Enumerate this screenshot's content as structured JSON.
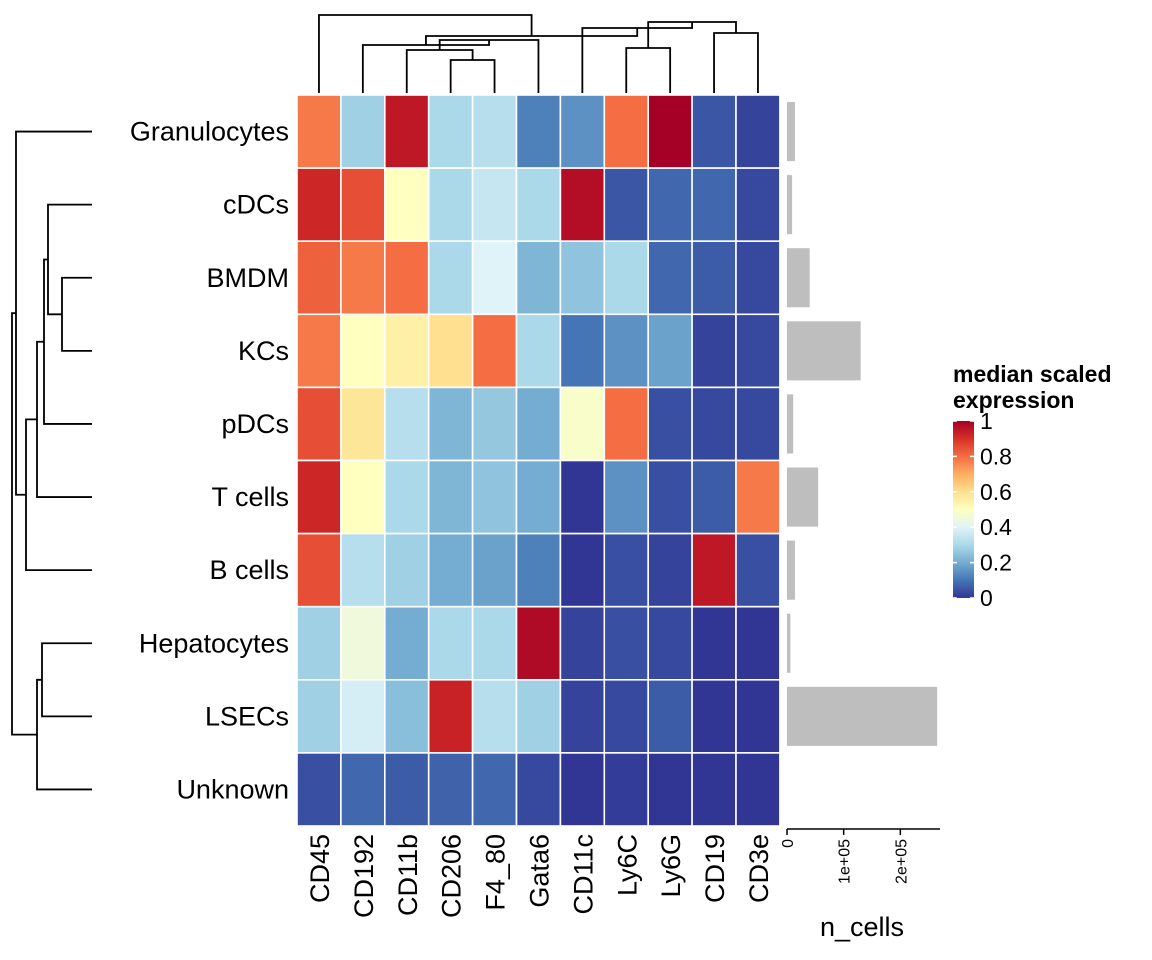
{
  "chart_data": {
    "type": "heatmap",
    "rows": [
      "Granulocytes",
      "cDCs",
      "BMDM",
      "KCs",
      "pDCs",
      "T cells",
      "B cells",
      "Hepatocytes",
      "LSECs",
      "Unknown"
    ],
    "columns": [
      "CD45",
      "CD192",
      "CD11b",
      "CD206",
      "F4_80",
      "Gata6",
      "CD11c",
      "Ly6C",
      "Ly6G",
      "CD19",
      "CD3e"
    ],
    "values": [
      [
        0.78,
        0.28,
        0.95,
        0.3,
        0.32,
        0.12,
        0.15,
        0.8,
        1.0,
        0.05,
        0.02
      ],
      [
        0.92,
        0.85,
        0.5,
        0.3,
        0.35,
        0.3,
        0.97,
        0.05,
        0.08,
        0.08,
        0.03
      ],
      [
        0.82,
        0.78,
        0.8,
        0.3,
        0.4,
        0.22,
        0.25,
        0.3,
        0.08,
        0.06,
        0.03
      ],
      [
        0.78,
        0.5,
        0.55,
        0.6,
        0.8,
        0.3,
        0.1,
        0.15,
        0.18,
        0.02,
        0.03
      ],
      [
        0.85,
        0.58,
        0.32,
        0.22,
        0.26,
        0.2,
        0.48,
        0.8,
        0.04,
        0.03,
        0.03
      ],
      [
        0.92,
        0.5,
        0.3,
        0.22,
        0.25,
        0.2,
        0.0,
        0.15,
        0.04,
        0.06,
        0.78
      ],
      [
        0.85,
        0.32,
        0.28,
        0.2,
        0.18,
        0.12,
        0.0,
        0.04,
        0.02,
        0.95,
        0.04
      ],
      [
        0.28,
        0.45,
        0.2,
        0.3,
        0.3,
        0.98,
        0.02,
        0.04,
        0.03,
        0.0,
        0.0
      ],
      [
        0.28,
        0.38,
        0.24,
        0.93,
        0.32,
        0.28,
        0.02,
        0.03,
        0.06,
        0.0,
        0.0
      ],
      [
        0.04,
        0.08,
        0.06,
        0.07,
        0.08,
        0.03,
        0.0,
        0.01,
        0.0,
        0.0,
        0.0
      ]
    ],
    "legend": {
      "title_lines": [
        "median scaled",
        "expression"
      ],
      "ticks": [
        "0",
        "0.2",
        "0.4",
        "0.6",
        "0.8",
        "1"
      ],
      "range": [
        0,
        1
      ],
      "colors": [
        "#313695",
        "#4575b4",
        "#74add1",
        "#abd9e9",
        "#e0f3f8",
        "#ffffbf",
        "#fee090",
        "#fdae61",
        "#f46d43",
        "#d73027",
        "#a50026"
      ]
    },
    "row_annotation": {
      "name": "n_cells",
      "values": [
        14000,
        9000,
        40000,
        130000,
        11000,
        55000,
        14000,
        6000,
        265000,
        0
      ],
      "axis_range": [
        0,
        270000
      ],
      "ticks": [
        0,
        100000,
        200000
      ],
      "tick_labels": [
        "0",
        "1e+05",
        "2e+05"
      ],
      "bar_color": "#bebebe"
    },
    "row_dendrogram": "yes",
    "column_dendrogram": "yes"
  }
}
